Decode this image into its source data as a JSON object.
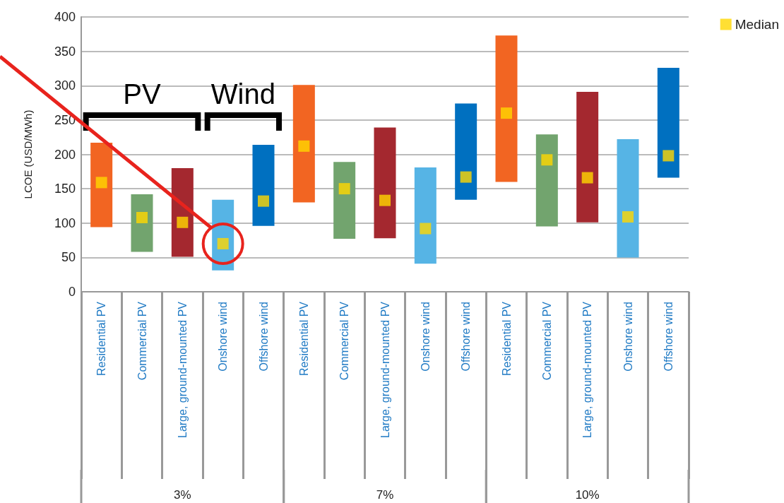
{
  "chart_data": {
    "type": "bar",
    "ylabel": "LCOE (USD/MWh)",
    "categories": [
      "Residential PV",
      "Commercial PV",
      "Large, ground-mounted PV",
      "Onshore wind",
      "Offshore wind",
      "Residential PV",
      "Commercial PV",
      "Large, ground-mounted PV",
      "Onshore wind",
      "Offshore wind",
      "Residential PV",
      "Commercial PV",
      "Large, ground-mounted PV",
      "Onshore wind",
      "Offshore wind"
    ],
    "series": [
      {
        "base": [
          94,
          58,
          51,
          31,
          96,
          130,
          77,
          78,
          41,
          134,
          160,
          95,
          101,
          50,
          166
        ],
        "colors": [
          "#f26522",
          "#72a46e",
          "#a4282f",
          "#56b4e5",
          "#0070c0",
          "#f26522",
          "#72a46e",
          "#a4282f",
          "#56b4e5",
          "#0070c0",
          "#f26522",
          "#72a46e",
          "#a4282f",
          "#56b4e5",
          "#0070c0"
        ],
        "values": [
          123,
          84,
          129,
          103,
          118,
          171,
          112,
          161,
          140,
          140,
          213,
          134,
          190,
          172,
          160
        ]
      },
      {
        "type": "scatter",
        "name": "Median",
        "color": "#ffd700",
        "values": [
          159,
          108,
          101,
          70,
          132,
          212,
          150,
          133,
          92,
          167,
          260,
          192,
          166,
          109,
          198
        ]
      }
    ],
    "ylim": [
      0,
      400
    ],
    "yticks": [
      0,
      50,
      100,
      150,
      200,
      250,
      300,
      350,
      400
    ],
    "grid": "y",
    "legend": "top right",
    "marker": "square",
    "annotations": [
      "PV",
      "Wind",
      "3%",
      "7%",
      "10%"
    ]
  }
}
